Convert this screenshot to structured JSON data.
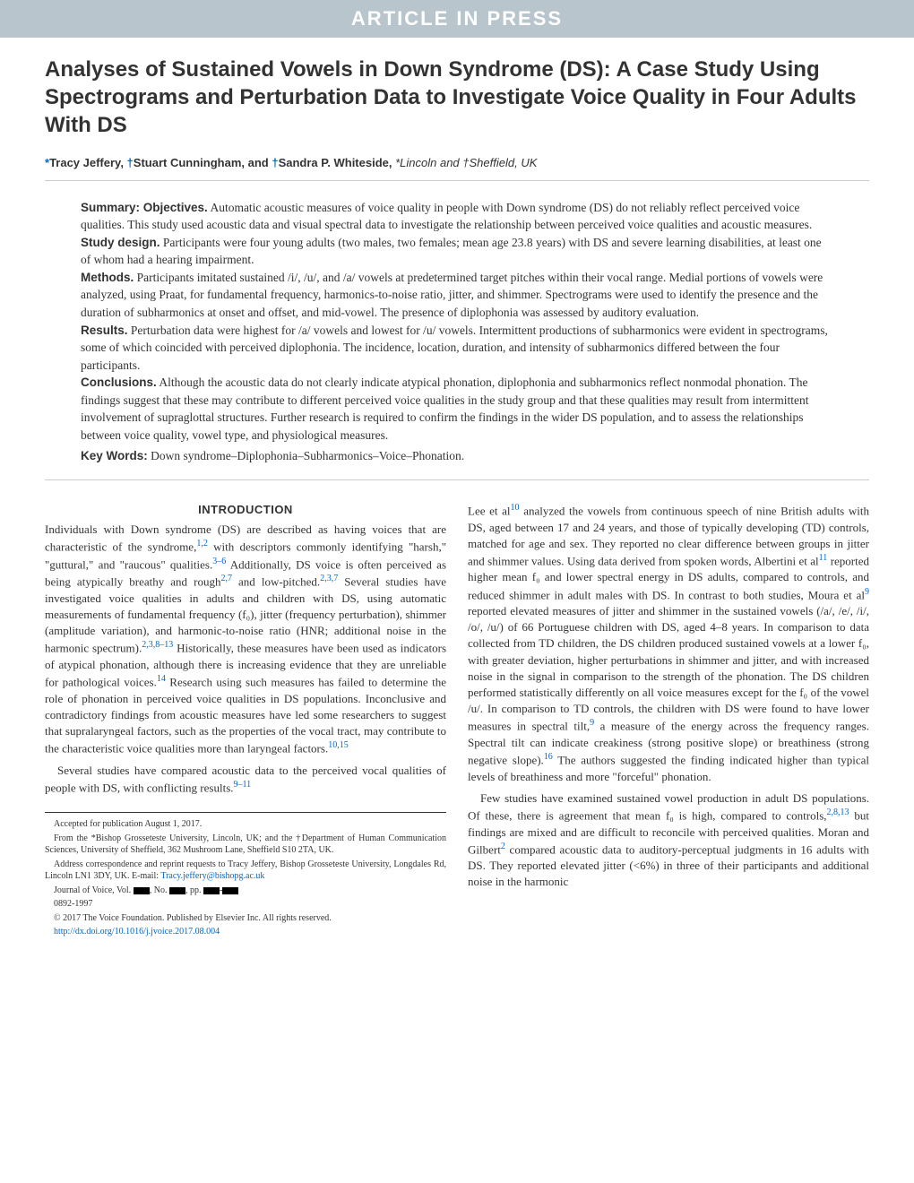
{
  "banner": "ARTICLE IN PRESS",
  "title": "Analyses of Sustained Vowels in Down Syndrome (DS): A Case Study Using Spectrograms and Perturbation Data to Investigate Voice Quality in Four Adults With DS",
  "authors": {
    "marker1": "*",
    "name1": "Tracy Jeffery, ",
    "marker2": "†",
    "name2": "Stuart Cunningham, and ",
    "marker3": "†",
    "name3": "Sandra P. Whiteside, ",
    "affiliations": "*Lincoln and †Sheffield, UK"
  },
  "abstract": {
    "summary_label": "Summary: Objectives.",
    "summary_text": " Automatic acoustic measures of voice quality in people with Down syndrome (DS) do not reliably reflect perceived voice qualities. This study used acoustic data and visual spectral data to investigate the relationship between perceived voice qualities and acoustic measures.",
    "design_label": "Study design.",
    "design_text": " Participants were four young adults (two males, two females; mean age 23.8 years) with DS and severe learning disabilities, at least one of whom had a hearing impairment.",
    "methods_label": "Methods.",
    "methods_text": " Participants imitated sustained /i/, /u/, and /a/ vowels at predetermined target pitches within their vocal range. Medial portions of vowels were analyzed, using Praat, for fundamental frequency, harmonics-to-noise ratio, jitter, and shimmer. Spectrograms were used to identify the presence and the duration of subharmonics at onset and offset, and mid-vowel. The presence of diplophonia was assessed by auditory evaluation.",
    "results_label": "Results.",
    "results_text": " Perturbation data were highest for /a/ vowels and lowest for /u/ vowels. Intermittent productions of subharmonics were evident in spectrograms, some of which coincided with perceived diplophonia. The incidence, location, duration, and intensity of subharmonics differed between the four participants.",
    "conclusions_label": "Conclusions.",
    "conclusions_text": " Although the acoustic data do not clearly indicate atypical phonation, diplophonia and subharmonics reflect nonmodal phonation. The findings suggest that these may contribute to different perceived voice qualities in the study group and that these qualities may result from intermittent involvement of supraglottal structures. Further research is required to confirm the findings in the wider DS population, and to assess the relationships between voice quality, vowel type, and physiological measures.",
    "keywords_label": "Key Words:",
    "keywords_text": " Down syndrome–Diplophonia–Subharmonics–Voice–Phonation."
  },
  "intro_heading": "INTRODUCTION",
  "body": {
    "para1a": "Individuals with Down syndrome (DS) are described as having voices that are characteristic of the syndrome,",
    "ref1": "1,2",
    "para1b": " with descriptors commonly identifying \"harsh,\" \"guttural,\" and \"raucous\" qualities.",
    "ref2": "3–6",
    "para1c": " Additionally, DS voice is often perceived as being atypically breathy and rough",
    "ref3": "2,7",
    "para1d": " and low-pitched.",
    "ref4": "2,3,7",
    "para1e": " Several studies have investigated voice qualities in adults and children with DS, using automatic measurements of fundamental frequency (f₀), jitter (frequency perturbation), shimmer (amplitude variation), and harmonic-to-noise ratio (HNR; additional noise in the harmonic spectrum).",
    "ref5": "2,3,8–13",
    "para1f": " Historically, these measures have been used as indicators of atypical phonation, although there is increasing evidence that they are unreliable for pathological voices.",
    "ref6": "14",
    "para1g": " Research using such measures has failed to determine the role of phonation in perceived voice qualities in DS populations. Inconclusive and contradictory findings from acoustic measures have led some researchers to suggest that supralaryngeal factors, such as the properties of the vocal tract, may contribute to the characteristic voice qualities more than laryngeal factors.",
    "ref7": "10,15",
    "para2a": "Several studies have compared acoustic data to the perceived vocal qualities of people with DS, with conflicting results.",
    "ref8": "9–11",
    "para3a": "Lee et al",
    "ref9": "10",
    "para3b": " analyzed the vowels from continuous speech of nine British adults with DS, aged between 17 and 24 years, and those of typically developing (TD) controls, matched for age and sex. They reported no clear difference between groups in jitter and shimmer values. Using data derived from spoken words, Albertini et al",
    "ref10": "11",
    "para3c": " reported higher mean f₀ and lower spectral energy in DS adults, compared to controls, and reduced shimmer in adult males with DS. In contrast to both studies, Moura et al",
    "ref11": "9",
    "para3d": " reported elevated measures of jitter and shimmer in the sustained vowels (/a/, /e/, /i/, /o/, /u/) of 66 Portuguese children with DS, aged 4–8 years. In comparison to data collected from TD children, the DS children produced sustained vowels at a lower f₀, with greater deviation, higher perturbations in shimmer and jitter, and with increased noise in the signal in comparison to the strength of the phonation. The DS children performed statistically differently on all voice measures except for the f₀ of the vowel /u/. In comparison to TD controls, the children with DS were found to have lower measures in spectral tilt,",
    "ref12": "9",
    "para3e": " a measure of the energy across the frequency ranges. Spectral tilt can indicate creakiness (strong positive slope) or breathiness (strong negative slope).",
    "ref13": "16",
    "para3f": " The authors suggested the finding indicated higher than typical levels of breathiness and more \"forceful\" phonation.",
    "para4a": "Few studies have examined sustained vowel production in adult DS populations. Of these, there is agreement that mean f₀ is high, compared to controls,",
    "ref14": "2,8,13",
    "para4b": " but findings are mixed and are difficult to reconcile with perceived qualities. Moran and Gilbert",
    "ref15": "2",
    "para4c": " compared acoustic data to auditory-perceptual judgments in 16 adults with DS. They reported elevated jitter (<6%) in three of their participants and additional noise in the harmonic"
  },
  "footnotes": {
    "accepted": "Accepted for publication August 1, 2017.",
    "from": "From the *Bishop Grosseteste University, Lincoln, UK; and the †Department of Human Communication Sciences, University of Sheffield, 362 Mushroom Lane, Sheffield S10 2TA, UK.",
    "address": "Address correspondence and reprint requests to Tracy Jeffery, Bishop Grosseteste University, Longdales Rd, Lincoln LN1 3DY, UK. E-mail: ",
    "email": "Tracy.jeffery@bishopg.ac.uk",
    "journal": "Journal of Voice, Vol. ",
    "journal_end": ", No. ",
    "journal_pp": ", pp. ",
    "issn": "0892-1997",
    "copyright": "© 2017 The Voice Foundation. Published by Elsevier Inc. All rights reserved.",
    "doi": "http://dx.doi.org/10.1016/j.jvoice.2017.08.004"
  },
  "colors": {
    "banner_bg": "#b8c5cc",
    "link": "#0066cc",
    "text": "#333333"
  }
}
